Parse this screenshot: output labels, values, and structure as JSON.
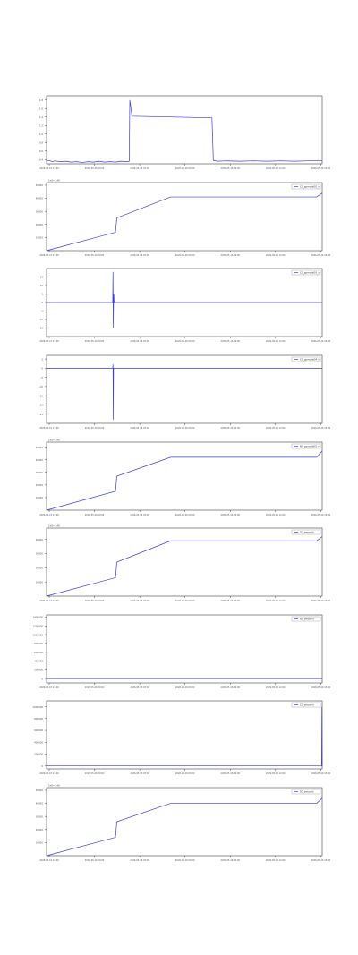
{
  "colors": {
    "line": "#3b3bdc",
    "axis": "#444444",
    "tick_text": "#555555",
    "background": "#ffffff"
  },
  "chart_data": [
    {
      "type": "line",
      "title": "",
      "legend": null,
      "offset_label": "",
      "xticks": [
        "2026-05-15 21:00",
        "2026-05-16 00:00",
        "2026-05-16 03:00",
        "2026-05-16 06:00",
        "2026-05-16 09:00",
        "2026-05-16 12:00",
        "2026-05-16 15:00"
      ],
      "yticks": [
        "0.4",
        "0.6",
        "0.8",
        "1.0",
        "1.2",
        "1.4",
        "1.6",
        "1.8"
      ],
      "ylim": [
        0.3,
        1.9
      ],
      "xlim": [
        0,
        1
      ],
      "grid": false,
      "series": [
        {
          "points": [
            [
              0,
              0.36
            ],
            [
              0.01,
              0.38
            ],
            [
              0.02,
              0.35
            ],
            [
              0.03,
              0.37
            ],
            [
              0.05,
              0.35
            ],
            [
              0.07,
              0.36
            ],
            [
              0.09,
              0.34
            ],
            [
              0.11,
              0.35
            ],
            [
              0.13,
              0.33
            ],
            [
              0.15,
              0.35
            ],
            [
              0.17,
              0.34
            ],
            [
              0.19,
              0.36
            ],
            [
              0.21,
              0.34
            ],
            [
              0.23,
              0.35
            ],
            [
              0.25,
              0.34
            ],
            [
              0.27,
              0.36
            ],
            [
              0.29,
              0.35
            ],
            [
              0.3,
              0.36
            ],
            [
              0.302,
              1.8
            ],
            [
              0.31,
              1.42
            ],
            [
              0.6,
              1.38
            ],
            [
              0.605,
              0.38
            ],
            [
              0.62,
              0.36
            ],
            [
              0.65,
              0.37
            ],
            [
              0.7,
              0.36
            ],
            [
              0.75,
              0.37
            ],
            [
              0.8,
              0.36
            ],
            [
              0.85,
              0.37
            ],
            [
              0.9,
              0.36
            ],
            [
              0.95,
              0.37
            ],
            [
              1.0,
              0.37
            ]
          ]
        }
      ]
    },
    {
      "type": "line",
      "title": "",
      "legend": "CO_ppmodel02_id",
      "offset_label": "1e9+1.46",
      "xticks": [
        "2026-05-15 21:00",
        "2026-05-16 00:00",
        "2026-05-16 03:00",
        "2026-05-16 06:00",
        "2026-05-16 09:00",
        "2026-05-16 12:00",
        "2026-05-16 15:00"
      ],
      "yticks": [
        "10000",
        "20000",
        "30000",
        "40000",
        "50000"
      ],
      "ylim": [
        0,
        52000
      ],
      "xlim": [
        0,
        1
      ],
      "grid": false,
      "series": [
        {
          "points": [
            [
              0,
              0
            ],
            [
              0.25,
              14000
            ],
            [
              0.255,
              25000
            ],
            [
              0.45,
              41000
            ],
            [
              0.98,
              41000
            ],
            [
              1.0,
              44000
            ]
          ]
        }
      ]
    },
    {
      "type": "line",
      "title": "",
      "legend": "CO_ppmodel03_id",
      "offset_label": "",
      "xticks": [
        "2026-05-15 21:00",
        "2026-05-16 00:00",
        "2026-05-16 03:00",
        "2026-05-16 06:00",
        "2026-05-16 09:00",
        "2026-05-16 12:00",
        "2026-05-16 15:00"
      ],
      "yticks": [
        "-15",
        "-10",
        "-5",
        "0",
        "5",
        "10",
        "15"
      ],
      "ylim": [
        -20,
        20
      ],
      "xlim": [
        0,
        1
      ],
      "grid": false,
      "series": [
        {
          "points": [
            [
              0,
              0
            ],
            [
              0.24,
              0
            ],
            [
              0.241,
              18
            ],
            [
              0.242,
              -15
            ],
            [
              0.243,
              0
            ],
            [
              0.244,
              5
            ],
            [
              0.245,
              0
            ],
            [
              1.0,
              0
            ]
          ]
        }
      ]
    },
    {
      "type": "line",
      "title": "",
      "legend": "CO_ppmodel04_id",
      "offset_label": "",
      "xticks": [
        "2026-05-15 21:00",
        "2026-05-16 00:00",
        "2026-05-16 03:00",
        "2026-05-16 06:00",
        "2026-05-16 09:00",
        "2026-05-16 12:00",
        "2026-05-16 15:00"
      ],
      "yticks": [
        "-25",
        "-20",
        "-15",
        "-10",
        "-5",
        "0",
        "5"
      ],
      "ylim": [
        -30,
        7
      ],
      "xlim": [
        0,
        1
      ],
      "grid": false,
      "series": [
        {
          "points": [
            [
              0,
              0
            ],
            [
              0.24,
              0
            ],
            [
              0.241,
              2
            ],
            [
              0.242,
              -28
            ],
            [
              0.243,
              0
            ],
            [
              1.0,
              0
            ]
          ]
        }
      ]
    },
    {
      "type": "line",
      "title": "",
      "legend": "NO_ppmodel01_id",
      "offset_label": "1e9+1.46",
      "xticks": [
        "2026-05-15 21:00",
        "2026-05-16 00:00",
        "2026-05-16 03:00",
        "2026-05-16 06:00",
        "2026-05-16 09:00",
        "2026-05-16 12:00",
        "2026-05-16 15:00"
      ],
      "yticks": [
        "10000",
        "20000",
        "30000",
        "40000",
        "50000"
      ],
      "ylim": [
        0,
        54000
      ],
      "xlim": [
        0,
        1
      ],
      "grid": false,
      "series": [
        {
          "points": [
            [
              0,
              0
            ],
            [
              0.25,
              15000
            ],
            [
              0.255,
              27000
            ],
            [
              0.45,
              42000
            ],
            [
              0.98,
              42000
            ],
            [
              1.0,
              47000
            ]
          ]
        }
      ]
    },
    {
      "type": "line",
      "title": "",
      "legend": "O3_sensorid",
      "offset_label": "1e9+1.46",
      "xticks": [
        "2026-05-15 21:00",
        "2026-05-16 00:00",
        "2026-05-16 03:00",
        "2026-05-16 06:00",
        "2026-05-16 09:00",
        "2026-05-16 12:00",
        "2026-05-16 15:00"
      ],
      "yticks": [
        "10000",
        "20000",
        "30000",
        "40000",
        "50000"
      ],
      "ylim": [
        0,
        48000
      ],
      "xlim": [
        0,
        1
      ],
      "grid": false,
      "series": [
        {
          "points": [
            [
              0,
              0
            ],
            [
              0.25,
              13000
            ],
            [
              0.255,
              24000
            ],
            [
              0.45,
              39000
            ],
            [
              0.98,
              39000
            ],
            [
              1.0,
              42000
            ]
          ]
        }
      ]
    },
    {
      "type": "line",
      "title": "",
      "legend": "NO_sensorid",
      "offset_label": "",
      "xticks": [
        "2026-05-15 21:00",
        "2026-05-16 00:00",
        "2026-05-16 03:00",
        "2026-05-16 06:00",
        "2026-05-16 09:00",
        "2026-05-16 12:00",
        "2026-05-16 15:00"
      ],
      "yticks": [
        "0",
        "200000",
        "400000",
        "600000",
        "800000",
        "1000000",
        "1200000",
        "1400000"
      ],
      "ylim": [
        -100000,
        1450000
      ],
      "xlim": [
        0,
        1
      ],
      "grid": false,
      "series": [
        {
          "points": [
            [
              0,
              0
            ],
            [
              1.0,
              0
            ]
          ]
        }
      ]
    },
    {
      "type": "line",
      "title": "",
      "legend": "CO_sensorid",
      "offset_label": "",
      "xticks": [
        "2026-05-15 21:00",
        "2026-05-16 00:00",
        "2026-05-16 03:00",
        "2026-05-16 06:00",
        "2026-05-16 09:00",
        "2026-05-16 12:00",
        "2026-05-16 15:00"
      ],
      "yticks": [
        "0",
        "200000",
        "400000",
        "600000",
        "800000",
        "1000000"
      ],
      "ylim": [
        -50000,
        1100000
      ],
      "xlim": [
        0,
        1
      ],
      "grid": false,
      "series": [
        {
          "points": [
            [
              0,
              0
            ],
            [
              0.998,
              0
            ],
            [
              0.999,
              1000000
            ],
            [
              1.0,
              0
            ]
          ]
        }
      ]
    },
    {
      "type": "line",
      "title": "",
      "legend": "SO_sensorid",
      "offset_label": "1e9+1.46",
      "xticks": [
        "2026-05-15 21:00",
        "2026-05-16 00:00",
        "2026-05-16 03:00",
        "2026-05-16 06:00",
        "2026-05-16 09:00",
        "2026-05-16 12:00",
        "2026-05-16 15:00"
      ],
      "yticks": [
        "10000",
        "20000",
        "30000",
        "40000",
        "50000"
      ],
      "ylim": [
        0,
        52000
      ],
      "xlim": [
        0,
        1
      ],
      "grid": false,
      "series": [
        {
          "points": [
            [
              0,
              0
            ],
            [
              0.25,
              14000
            ],
            [
              0.255,
              26000
            ],
            [
              0.45,
              40000
            ],
            [
              0.98,
              40000
            ],
            [
              1.0,
              44000
            ]
          ]
        }
      ]
    }
  ]
}
